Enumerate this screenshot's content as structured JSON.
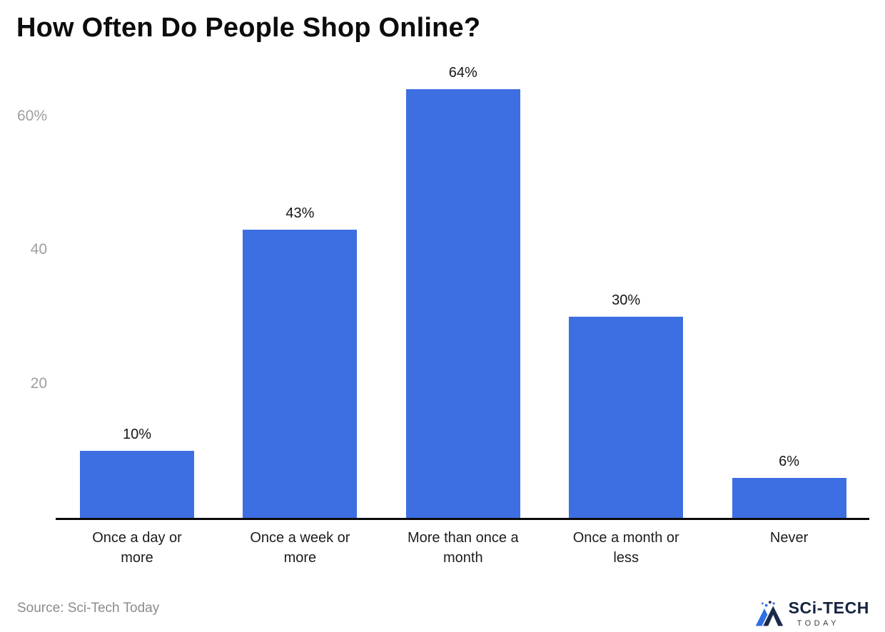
{
  "chart_data": {
    "type": "bar",
    "title": "How Often Do People Shop Online?",
    "categories": [
      "Once a day or more",
      "Once a week or more",
      "More than once a month",
      "Once a month or less",
      "Never"
    ],
    "values": [
      10,
      43,
      64,
      30,
      6
    ],
    "value_labels": [
      "10%",
      "43%",
      "64%",
      "30%",
      "6%"
    ],
    "xlabel": "",
    "ylabel": "",
    "ylim": [
      0,
      70
    ],
    "yticks": [
      {
        "value": 20,
        "label": "20"
      },
      {
        "value": 40,
        "label": "40"
      },
      {
        "value": 60,
        "label": "60%"
      }
    ],
    "bar_color": "#3D6FE2",
    "grid": false,
    "legend": false
  },
  "source": "Source: Sci-Tech Today",
  "logo": {
    "main": "SCi-TECH",
    "sub": "TODAY",
    "accent_color": "#2F6FE4",
    "dark_color": "#1B2A4A"
  }
}
